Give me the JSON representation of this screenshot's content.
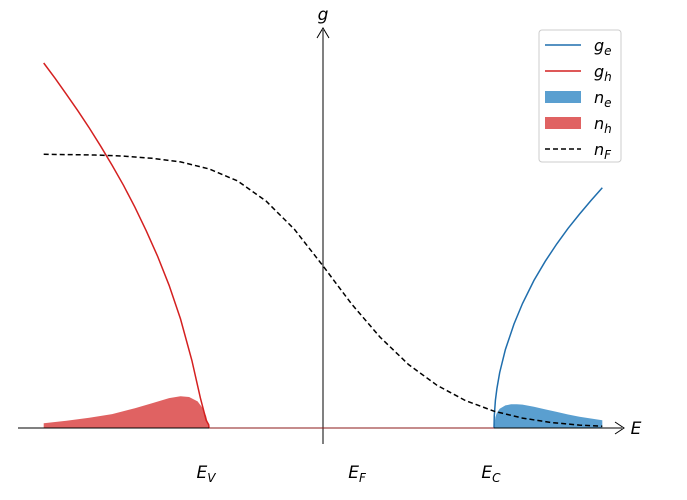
{
  "chart_data": {
    "type": "line",
    "xlabel": "E",
    "ylabel": "g",
    "xlim": [
      -1.0,
      1.0
    ],
    "ylim": [
      0.0,
      1.0
    ],
    "grid": false,
    "legend_placement": "top-right",
    "x_ticks": [
      {
        "x": -0.4,
        "main": "E",
        "sub": "V"
      },
      {
        "x": 0.13,
        "main": "E",
        "sub": "F"
      },
      {
        "x": 0.6,
        "main": "E",
        "sub": "C"
      }
    ],
    "series": [
      {
        "name": "g_e",
        "legend_main": "g",
        "legend_sub": "e",
        "kind": "line",
        "color": "#1f6ead",
        "x": [
          0.6,
          0.601,
          0.605,
          0.61,
          0.62,
          0.64,
          0.67,
          0.7,
          0.74,
          0.78,
          0.82,
          0.86,
          0.9,
          0.94,
          0.98
        ],
        "y": [
          0.0,
          0.034,
          0.076,
          0.108,
          0.152,
          0.215,
          0.285,
          0.341,
          0.404,
          0.457,
          0.504,
          0.547,
          0.586,
          0.623,
          0.658
        ]
      },
      {
        "name": "g_h",
        "legend_main": "g",
        "legend_sub": "h",
        "kind": "line",
        "color": "#d42020",
        "x": [
          -0.98,
          -0.94,
          -0.9,
          -0.86,
          -0.82,
          -0.78,
          -0.74,
          -0.7,
          -0.66,
          -0.62,
          -0.58,
          -0.54,
          -0.5,
          -0.46,
          -0.43,
          -0.41,
          -0.401,
          -0.4
        ],
        "y": [
          1.0,
          0.958,
          0.914,
          0.869,
          0.822,
          0.772,
          0.72,
          0.665,
          0.605,
          0.54,
          0.47,
          0.391,
          0.299,
          0.185,
          0.082,
          0.021,
          0.009,
          0.0
        ]
      },
      {
        "name": "n_e",
        "legend_main": "n",
        "legend_sub": "e",
        "kind": "area",
        "color": "#5a9fd0",
        "x": [
          0.6,
          0.605,
          0.61,
          0.62,
          0.64,
          0.66,
          0.68,
          0.7,
          0.74,
          0.78,
          0.82,
          0.86,
          0.9,
          0.94,
          0.98
        ],
        "y": [
          0.0,
          0.03,
          0.042,
          0.053,
          0.062,
          0.065,
          0.065,
          0.064,
          0.058,
          0.051,
          0.044,
          0.037,
          0.031,
          0.026,
          0.021
        ]
      },
      {
        "name": "n_h",
        "legend_main": "n",
        "legend_sub": "h",
        "kind": "area",
        "color": "#e06262",
        "x": [
          -0.98,
          -0.9,
          -0.82,
          -0.74,
          -0.66,
          -0.6,
          -0.54,
          -0.5,
          -0.47,
          -0.44,
          -0.42,
          -0.41,
          -0.4
        ],
        "y": [
          0.013,
          0.02,
          0.028,
          0.038,
          0.054,
          0.068,
          0.082,
          0.087,
          0.085,
          0.073,
          0.052,
          0.032,
          0.0
        ]
      },
      {
        "name": "n_F",
        "legend_main": "n",
        "legend_sub": "F",
        "kind": "dashed",
        "color": "#000000",
        "x": [
          -0.98,
          -0.9,
          -0.8,
          -0.7,
          -0.6,
          -0.5,
          -0.4,
          -0.3,
          -0.2,
          -0.1,
          0.0,
          0.1,
          0.2,
          0.3,
          0.4,
          0.5,
          0.6,
          0.7,
          0.8,
          0.9,
          0.98
        ],
        "y": [
          0.75,
          0.749,
          0.748,
          0.745,
          0.739,
          0.729,
          0.71,
          0.677,
          0.622,
          0.544,
          0.444,
          0.34,
          0.249,
          0.174,
          0.117,
          0.075,
          0.046,
          0.027,
          0.015,
          0.008,
          0.005
        ]
      }
    ]
  }
}
